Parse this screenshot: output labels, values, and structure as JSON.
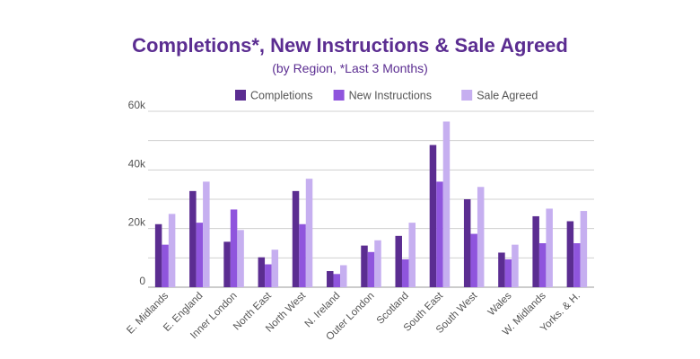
{
  "chart_data": {
    "type": "bar",
    "title": "Completions*, New Instructions & Sale Agreed",
    "subtitle": "(by Region, *Last 3 Months)",
    "xlabel": "",
    "ylabel": "",
    "ylim": [
      0,
      60000
    ],
    "yticks": [
      0,
      20000,
      40000,
      60000
    ],
    "ytick_labels": [
      "0",
      "20k",
      "40k",
      "60k"
    ],
    "grid": true,
    "legend_position": "top-center",
    "categories": [
      "E. Midlands",
      "E. England",
      "Inner London",
      "North East",
      "North West",
      "N. Ireland",
      "Outer London",
      "Scotland",
      "South East",
      "South West",
      "Wales",
      "W. Midlands",
      "Yorks. & H."
    ],
    "series": [
      {
        "name": "Completions",
        "color": "#5b2d91",
        "values": [
          21500,
          32800,
          15500,
          10200,
          32800,
          5500,
          14200,
          17500,
          48500,
          30000,
          11800,
          24200,
          22500
        ]
      },
      {
        "name": "New Instructions",
        "color": "#8f55dd",
        "values": [
          14500,
          22000,
          26500,
          7800,
          21500,
          4500,
          12000,
          9500,
          36000,
          18200,
          9500,
          15000,
          15000
        ]
      },
      {
        "name": "Sale Agreed",
        "color": "#c6aff0",
        "values": [
          25000,
          36000,
          19500,
          12800,
          37000,
          7500,
          16000,
          22000,
          56500,
          34200,
          14500,
          26800,
          26000
        ]
      }
    ]
  }
}
